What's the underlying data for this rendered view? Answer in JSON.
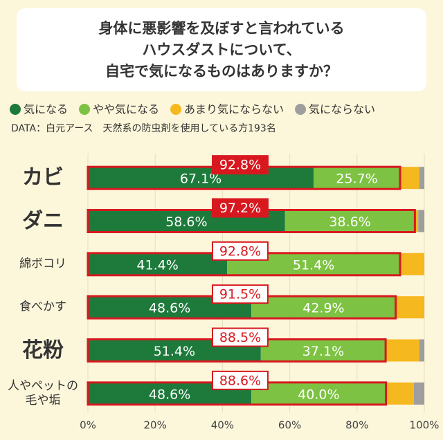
{
  "title": [
    "身体に悪影響を及ぼすと言われている",
    "ハウスダストについて、",
    "自宅で気になるものはありますか？"
  ],
  "chart_data": {
    "type": "stacked-bar-horizontal",
    "categories": [
      "カビ",
      "ダニ",
      "綿ボコリ",
      "食べかす",
      "花粉",
      "人やペットの\n毛や垢"
    ],
    "series": [
      {
        "name": "気になる",
        "color": "#1d7a3b",
        "values": [
          67.1,
          58.6,
          41.4,
          48.6,
          51.4,
          48.6
        ],
        "value_labels": [
          "67.1%",
          "58.6%",
          "41.4%",
          "48.6%",
          "51.4%",
          "48.6%"
        ]
      },
      {
        "name": "やや気になる",
        "color": "#7dc242",
        "values": [
          25.7,
          38.6,
          51.4,
          42.9,
          37.1,
          40.0
        ],
        "value_labels": [
          "25.7%",
          "38.6%",
          "51.4%",
          "42.9%",
          "37.1%",
          "40.0%"
        ]
      },
      {
        "name": "あまり気にならない",
        "color": "#f6b81f",
        "values": [
          5.7,
          1.0,
          7.2,
          8.5,
          10.0,
          8.3
        ]
      },
      {
        "name": "気にならない",
        "color": "#9e9e9e",
        "values": [
          1.5,
          1.8,
          0,
          0,
          1.5,
          3.1
        ]
      }
    ],
    "totals": {
      "values": [
        92.8,
        97.2,
        92.8,
        91.5,
        88.5,
        88.6
      ],
      "value_labels": [
        "92.8%",
        "97.2%",
        "92.8%",
        "91.5%",
        "88.5%",
        "88.6%"
      ],
      "color": "#d7191f",
      "style": [
        "filled",
        "filled",
        "outline",
        "outline",
        "outline",
        "outline"
      ]
    },
    "source": "DATA：白元アース　天然系の防虫剤を使用している方193名",
    "xlim": [
      0,
      100
    ],
    "xticks": [
      {
        "value": 0,
        "label": "0%"
      },
      {
        "value": 20,
        "label": "20%"
      },
      {
        "value": 40,
        "label": "40%"
      },
      {
        "value": 60,
        "label": "60%"
      },
      {
        "value": 80,
        "label": "80%"
      },
      {
        "value": 100,
        "label": "100%"
      }
    ],
    "grid": true
  }
}
